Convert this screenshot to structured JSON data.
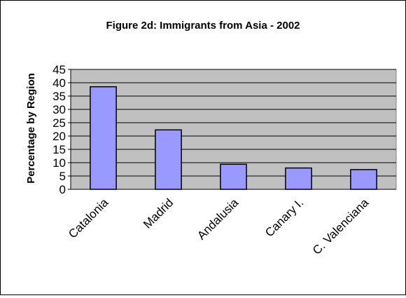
{
  "chart_data": {
    "type": "bar",
    "title": "Figure 2d: Immigrants from Asia - 2002",
    "xlabel": "",
    "ylabel": "Percentage by Region",
    "categories": [
      "Catalonia",
      "Madrid",
      "Andalusia",
      "Canary I.",
      "C. Valenciana"
    ],
    "values": [
      38.5,
      22.3,
      9.4,
      8.0,
      7.4
    ],
    "ylim": [
      0,
      45
    ],
    "yticks": [
      0,
      5,
      10,
      15,
      20,
      25,
      30,
      35,
      40,
      45
    ],
    "grid": true,
    "legend": "none",
    "colors": {
      "bar": "#9999ff",
      "plot_area": "#c0c0c0",
      "gridline": "#000000"
    }
  }
}
